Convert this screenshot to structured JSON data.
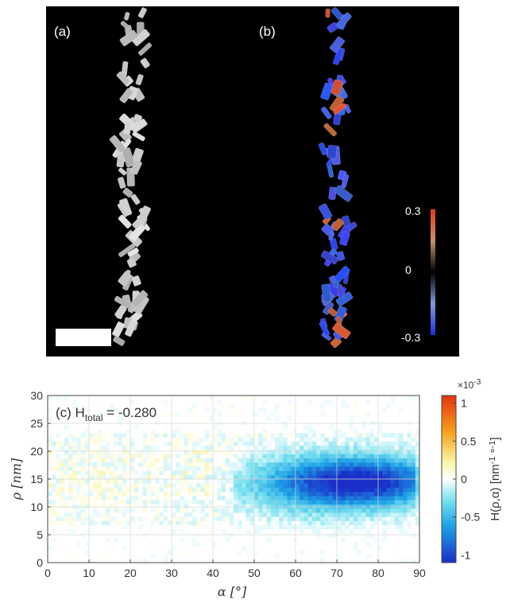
{
  "panel_a_label": "(a)",
  "panel_b_label": "(b)",
  "colorbar_top": {
    "ticks": [
      "0.3",
      "0",
      "-0.3"
    ],
    "colors": {
      "high": "#e03a1a",
      "mid": "#000000",
      "low": "#1a2fe0"
    }
  },
  "chart_data": {
    "type": "heatmap",
    "annotation": "(c) H",
    "annotation_subscript": "total",
    "annotation_value": " = -0.280",
    "xlabel": "α [°]",
    "ylabel": "ρ [nm]",
    "xlim": [
      0,
      90
    ],
    "ylim": [
      0,
      30
    ],
    "xticks": [
      0,
      10,
      20,
      30,
      40,
      50,
      60,
      70,
      80,
      90
    ],
    "yticks": [
      0,
      5,
      10,
      15,
      20,
      25,
      30
    ],
    "grid": true,
    "colorbar": {
      "label": "H(ρ,α) [nm",
      "label_sup": "-1",
      "label_tail": " °",
      "label_sup2": "-1",
      "label_end": "]",
      "exponent": "×10",
      "exponent_power": "-3",
      "ticks": [
        1,
        0.5,
        0,
        -0.5,
        -1
      ],
      "tick_labels": [
        "1",
        "0.5",
        "0",
        "-0.5",
        "-1"
      ],
      "range": [
        -1.1,
        1.1
      ]
    },
    "density_peak": {
      "alpha": 78,
      "rho": 14.5,
      "value": -1.0
    },
    "density_extent": {
      "alpha": [
        45,
        90
      ],
      "rho": [
        3,
        25
      ]
    }
  }
}
